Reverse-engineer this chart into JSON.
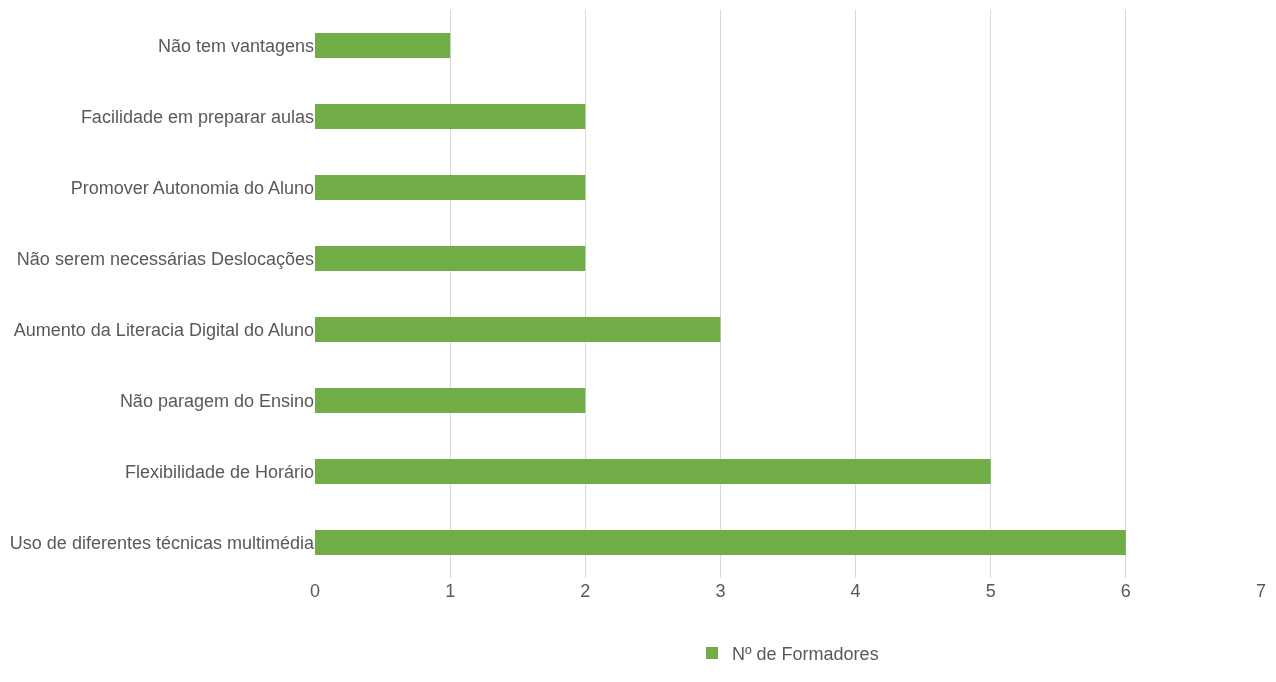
{
  "chart_data": {
    "type": "bar",
    "orientation": "horizontal",
    "categories": [
      "Não tem vantagens",
      "Facilidade em preparar aulas",
      "Promover Autonomia do Aluno",
      "Não serem necessárias Deslocações",
      "Aumento da Literacia Digital do Aluno",
      "Não paragem do Ensino",
      "Flexibilidade de Horário",
      "Uso de diferentes técnicas multimédia"
    ],
    "series": [
      {
        "name": "Nº de Formadores",
        "color": "#70ad47",
        "values": [
          1,
          2,
          2,
          2,
          3,
          2,
          5,
          6
        ]
      }
    ],
    "xlim": [
      0,
      7
    ],
    "xticks": [
      0,
      1,
      2,
      3,
      4,
      5,
      6,
      7
    ],
    "grid": "x",
    "legend": "bottom"
  }
}
